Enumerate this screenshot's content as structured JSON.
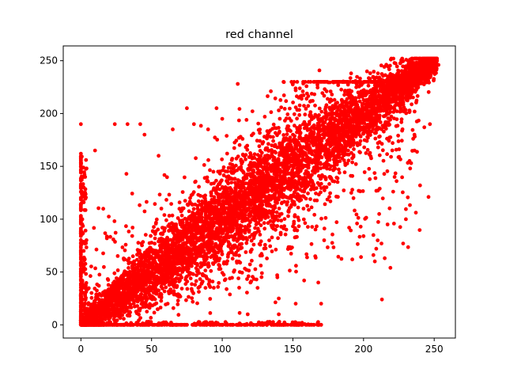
{
  "chart_data": {
    "type": "scatter",
    "title": "red channel",
    "xlabel": "",
    "ylabel": "",
    "xlim": [
      -12.5,
      265
    ],
    "ylim": [
      -12.5,
      264
    ],
    "xticks": [
      0,
      50,
      100,
      150,
      200,
      250
    ],
    "yticks": [
      0,
      50,
      100,
      150,
      200,
      250
    ],
    "grid": false,
    "legend": "none",
    "series": [
      {
        "color": "#ff0000",
        "marker": "circle",
        "generator": {
          "description_of_distribution": "dense diagonal band y≈x from 0 to 252 with widening spread, floor along y=0 up to x≈170, wall along x=0 up to y≈190",
          "band_points": 5200,
          "floor_points": 320,
          "wall_points": 260,
          "scatter_points": 1400,
          "seed": 7
        },
        "points": [
          [
            0,
            190
          ],
          [
            24,
            190
          ],
          [
            33,
            190
          ],
          [
            42,
            190
          ],
          [
            111,
            228
          ],
          [
            10,
            165
          ],
          [
            0,
            162
          ],
          [
            0,
            155
          ],
          [
            0,
            150
          ],
          [
            4,
            148
          ],
          [
            213,
            24
          ],
          [
            208,
            60
          ],
          [
            207,
            66
          ],
          [
            209,
            72
          ],
          [
            210,
            80
          ],
          [
            207,
            85
          ],
          [
            219,
            54
          ],
          [
            215,
            63
          ],
          [
            230,
            100
          ],
          [
            217,
            95
          ],
          [
            228,
            77
          ],
          [
            211,
            178
          ],
          [
            222,
            140
          ],
          [
            246,
            121
          ],
          [
            240,
            132
          ],
          [
            233,
            148
          ],
          [
            236,
            165
          ],
          [
            236,
            180
          ],
          [
            243,
            187
          ],
          [
            247,
            190
          ],
          [
            251,
            245
          ],
          [
            253,
            246
          ],
          [
            249,
            250
          ],
          [
            45,
            180
          ],
          [
            55,
            160
          ],
          [
            65,
            185
          ],
          [
            75,
            205
          ],
          [
            80,
            190
          ],
          [
            90,
            185
          ],
          [
            140,
            203
          ],
          [
            152,
            222
          ],
          [
            157,
            221
          ],
          [
            160,
            219
          ],
          [
            164,
            212
          ],
          [
            168,
            181
          ],
          [
            170,
            195
          ],
          [
            150,
            180
          ],
          [
            122,
            181
          ],
          [
            113,
            178
          ],
          [
            96,
            205
          ],
          [
            100,
            195
          ],
          [
            168,
            40
          ],
          [
            158,
            42
          ],
          [
            139,
            45
          ],
          [
            140,
            25
          ],
          [
            152,
            20
          ],
          [
            170,
            20
          ],
          [
            125,
            35
          ],
          [
            118,
            10
          ],
          [
            120,
            40
          ],
          [
            140,
            10
          ],
          [
            96,
            0
          ],
          [
            110,
            0
          ],
          [
            127,
            0
          ],
          [
            135,
            0
          ],
          [
            145,
            0
          ],
          [
            152,
            0
          ],
          [
            160,
            0
          ],
          [
            165,
            0
          ],
          [
            170,
            0
          ],
          [
            2,
            56
          ],
          [
            1,
            86
          ],
          [
            2,
            116
          ],
          [
            2,
            130
          ],
          [
            1,
            100
          ],
          [
            3,
            140
          ],
          [
            2,
            70
          ],
          [
            1,
            42
          ],
          [
            3,
            30
          ]
        ]
      }
    ]
  }
}
